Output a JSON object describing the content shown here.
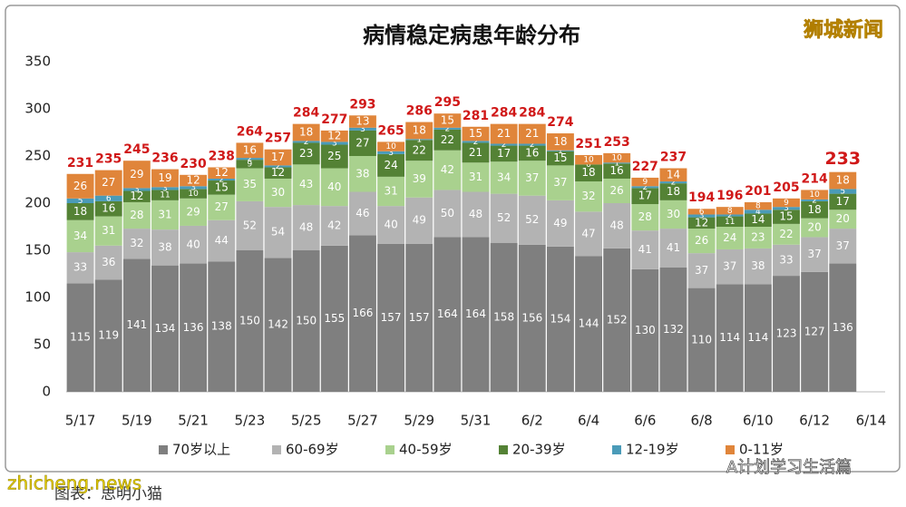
{
  "chart_data": {
    "type": "stacked_bar",
    "title": "病情稳定病患年龄分布",
    "categories": [
      "5/17",
      null,
      "5/19",
      null,
      "5/21",
      null,
      "5/23",
      null,
      "5/25",
      null,
      "5/27",
      null,
      "5/29",
      null,
      "5/31",
      null,
      "6/2",
      null,
      "6/4",
      null,
      "6/6",
      null,
      "6/8",
      null,
      "6/10",
      null,
      "6/12",
      null,
      "6/14"
    ],
    "series": [
      {
        "name": "70岁以上",
        "color": "#7f7f7f",
        "values": [
          115,
          119,
          141,
          134,
          136,
          138,
          150,
          142,
          150,
          155,
          166,
          157,
          157,
          164,
          164,
          158,
          156,
          154,
          144,
          152,
          130,
          132,
          110,
          114,
          114,
          123,
          127,
          136,
          null
        ]
      },
      {
        "name": "60-69岁",
        "color": "#b3b3b3",
        "values": [
          33,
          36,
          32,
          38,
          40,
          44,
          52,
          54,
          48,
          42,
          46,
          40,
          49,
          50,
          48,
          52,
          52,
          49,
          47,
          48,
          41,
          41,
          37,
          37,
          38,
          33,
          37,
          37,
          null
        ]
      },
      {
        "name": "40-59岁",
        "color": "#a9d18e",
        "values": [
          34,
          31,
          28,
          31,
          29,
          27,
          35,
          30,
          43,
          40,
          38,
          31,
          39,
          42,
          31,
          34,
          37,
          37,
          32,
          26,
          28,
          30,
          26,
          24,
          23,
          22,
          20,
          20,
          null
        ]
      },
      {
        "name": "20-39岁",
        "color": "#548235",
        "values": [
          18,
          16,
          12,
          11,
          10,
          15,
          9,
          12,
          23,
          25,
          27,
          24,
          22,
          22,
          21,
          17,
          16,
          15,
          18,
          16,
          17,
          18,
          12,
          11,
          14,
          15,
          18,
          17,
          null
        ]
      },
      {
        "name": "12-19岁",
        "color": "#4a9bb8",
        "values": [
          5,
          6,
          3,
          3,
          3,
          2,
          2,
          2,
          2,
          3,
          3,
          3,
          1,
          2,
          2,
          2,
          2,
          1,
          0,
          1,
          2,
          2,
          3,
          2,
          4,
          3,
          2,
          5,
          null
        ]
      },
      {
        "name": "0-11岁",
        "color": "#e0853a",
        "values": [
          26,
          27,
          29,
          19,
          12,
          12,
          16,
          17,
          18,
          12,
          13,
          10,
          18,
          15,
          15,
          21,
          21,
          18,
          10,
          10,
          9,
          14,
          6,
          8,
          8,
          9,
          10,
          18,
          null
        ]
      }
    ],
    "totals": [
      231,
      235,
      245,
      236,
      230,
      238,
      264,
      257,
      284,
      277,
      293,
      265,
      286,
      295,
      281,
      284,
      284,
      274,
      251,
      253,
      227,
      237,
      194,
      196,
      201,
      205,
      214,
      233,
      null
    ],
    "ylim": [
      0,
      350
    ],
    "yticks": [
      0,
      50,
      100,
      150,
      200,
      250,
      300,
      350
    ],
    "grid": false
  },
  "watermarks": {
    "top_right": "狮城新闻",
    "bottom_left": "zhicheng.news",
    "caption": "图表：思明小猫",
    "bottom_right": "A计划学习生活篇"
  }
}
